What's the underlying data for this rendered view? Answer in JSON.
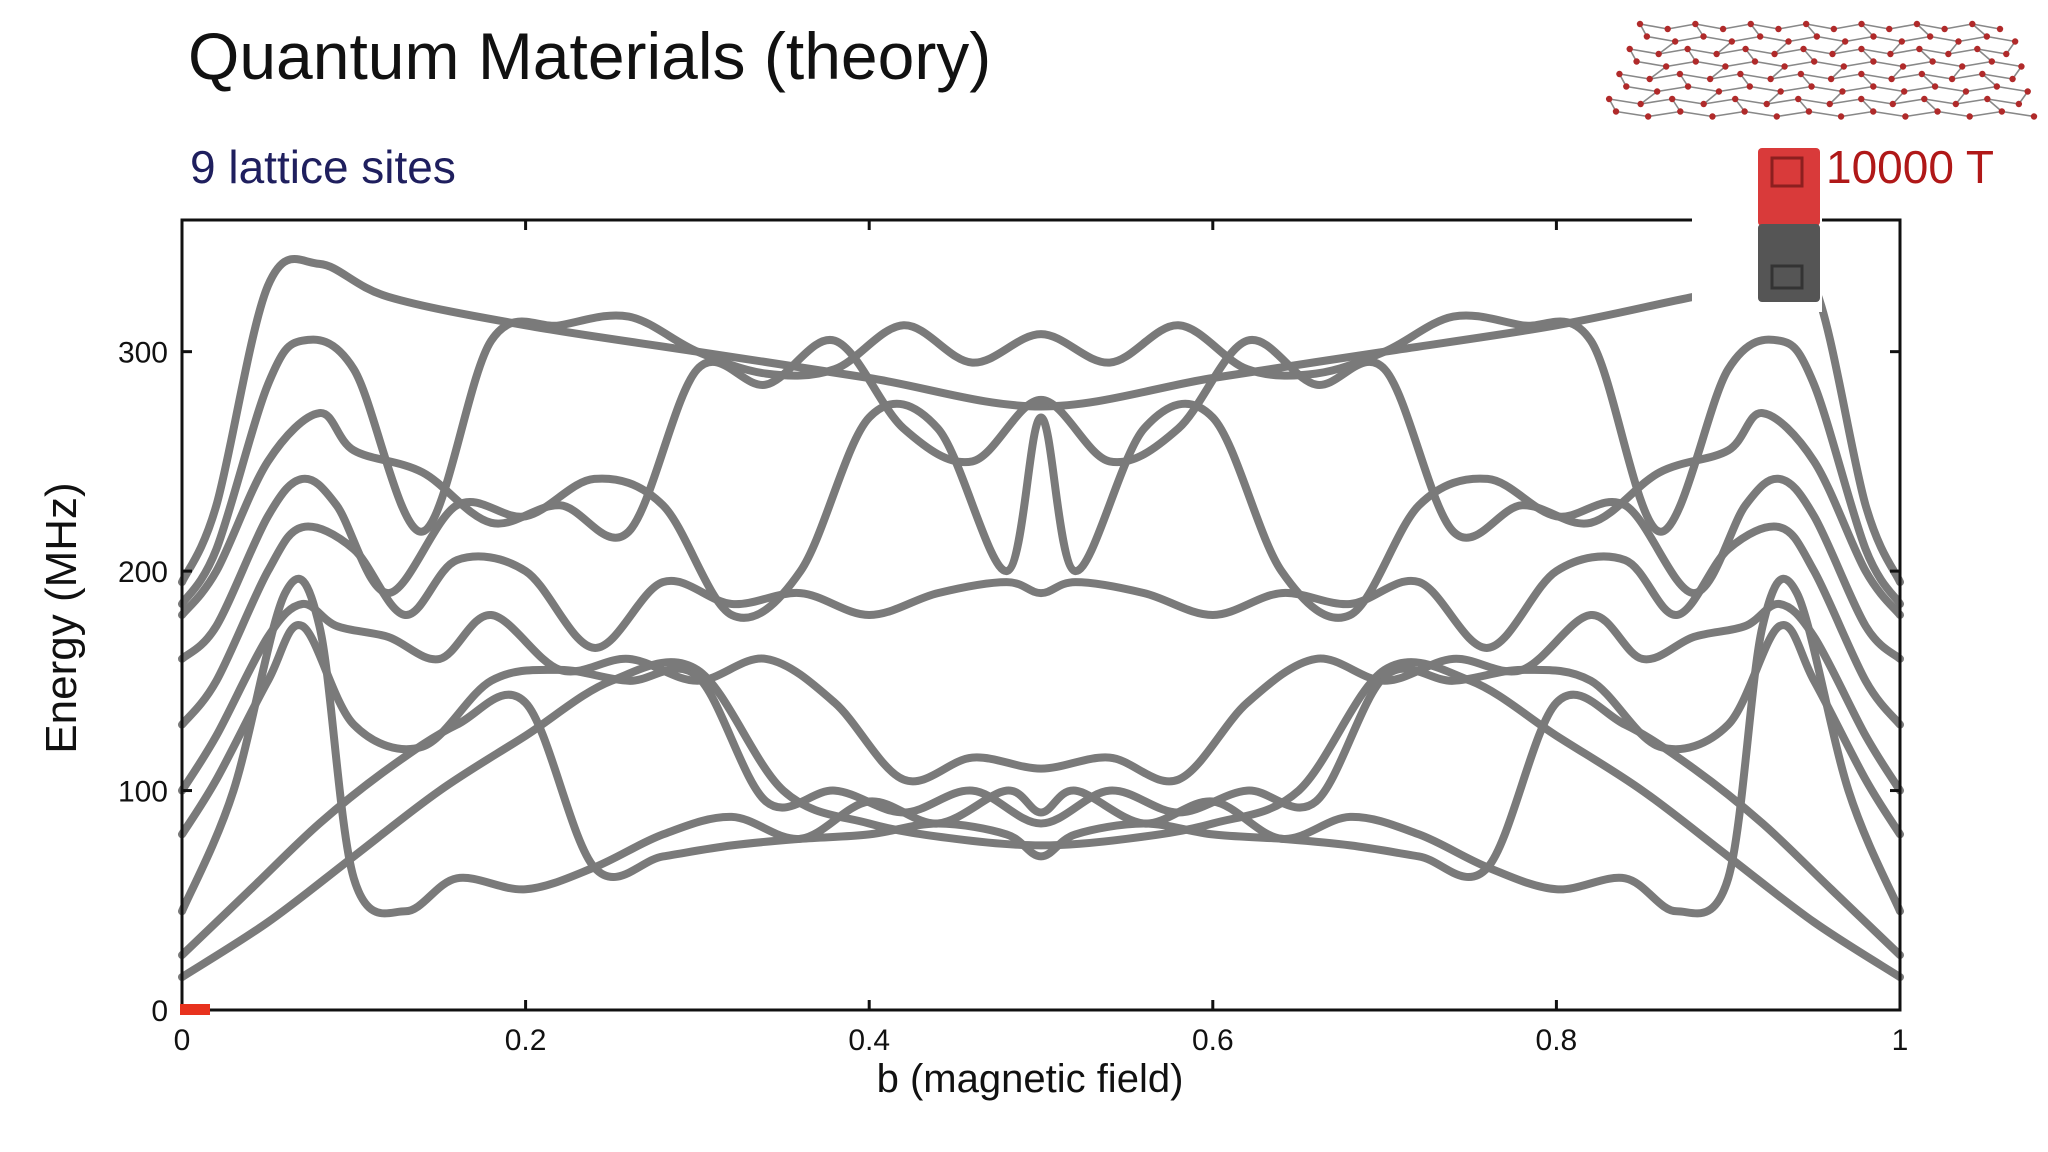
{
  "slide": {
    "title": "Quantum Materials (theory)",
    "subtitle": "9 lattice sites",
    "field_label": "10000 T"
  },
  "icons": {
    "lattice": "honeycomb-lattice-icon",
    "magnet": "bar-magnet-icon"
  },
  "colors": {
    "curve": "#7a7a7a",
    "marker": "#e8321e",
    "magnet_north": "#d93a3a",
    "magnet_south": "#555555",
    "lattice_dot": "#b02a2a",
    "field_text": "#b01818",
    "subtitle_text": "#1f1f5e"
  },
  "chart_data": {
    "type": "line",
    "title": "",
    "xlabel": "b (magnetic field)",
    "ylabel": "Energy (MHz)",
    "xlim": [
      0,
      1
    ],
    "ylim": [
      0,
      360
    ],
    "xticks": [
      0,
      0.2,
      0.4,
      0.6,
      0.8,
      1
    ],
    "xtick_labels": [
      "0",
      "0.2",
      "0.4",
      "0.6",
      "0.8",
      "1"
    ],
    "yticks": [
      0,
      100,
      200,
      300
    ],
    "ytick_labels": [
      "0",
      "100",
      "200",
      "300"
    ],
    "grid": false,
    "legend": "none",
    "current_b": 0,
    "series": [
      {
        "x": [
          0,
          0.02,
          0.05,
          0.08,
          0.12,
          0.2,
          0.3,
          0.4,
          0.5,
          0.6,
          0.7,
          0.8,
          0.88,
          0.92,
          0.95,
          0.98,
          1
        ],
        "y": [
          195,
          230,
          330,
          340,
          325,
          312,
          300,
          288,
          275,
          288,
          300,
          312,
          325,
          330,
          330,
          230,
          195
        ]
      },
      {
        "x": [
          0,
          0.02,
          0.05,
          0.07,
          0.1,
          0.14,
          0.18,
          0.22,
          0.26,
          0.3,
          0.34,
          0.38,
          0.42,
          0.46,
          0.5,
          0.54,
          0.58,
          0.62,
          0.66,
          0.7,
          0.74,
          0.78,
          0.82,
          0.86,
          0.9,
          0.93,
          0.95,
          0.98,
          1
        ],
        "y": [
          185,
          210,
          285,
          305,
          292,
          218,
          305,
          312,
          316,
          300,
          290,
          292,
          312,
          295,
          308,
          295,
          312,
          292,
          290,
          300,
          316,
          312,
          305,
          218,
          292,
          305,
          285,
          210,
          185
        ]
      },
      {
        "x": [
          0,
          0.02,
          0.05,
          0.08,
          0.1,
          0.14,
          0.18,
          0.22,
          0.26,
          0.3,
          0.34,
          0.38,
          0.42,
          0.46,
          0.5,
          0.54,
          0.58,
          0.62,
          0.66,
          0.7,
          0.74,
          0.78,
          0.82,
          0.86,
          0.9,
          0.92,
          0.95,
          0.98,
          1
        ],
        "y": [
          180,
          200,
          250,
          272,
          255,
          245,
          222,
          230,
          218,
          292,
          285,
          305,
          265,
          250,
          278,
          250,
          265,
          305,
          285,
          292,
          218,
          230,
          222,
          245,
          255,
          272,
          250,
          200,
          180
        ]
      },
      {
        "x": [
          0,
          0.02,
          0.05,
          0.07,
          0.09,
          0.12,
          0.16,
          0.2,
          0.24,
          0.28,
          0.32,
          0.36,
          0.4,
          0.44,
          0.48,
          0.5,
          0.52,
          0.56,
          0.6,
          0.64,
          0.68,
          0.72,
          0.76,
          0.8,
          0.84,
          0.88,
          0.91,
          0.93,
          0.95,
          0.98,
          1
        ],
        "y": [
          160,
          175,
          225,
          242,
          230,
          190,
          230,
          225,
          242,
          230,
          180,
          200,
          270,
          265,
          200,
          270,
          200,
          265,
          270,
          200,
          180,
          230,
          242,
          225,
          230,
          190,
          230,
          242,
          225,
          175,
          160
        ]
      },
      {
        "x": [
          0,
          0.02,
          0.05,
          0.07,
          0.1,
          0.13,
          0.16,
          0.2,
          0.24,
          0.28,
          0.32,
          0.36,
          0.4,
          0.44,
          0.48,
          0.5,
          0.52,
          0.56,
          0.6,
          0.64,
          0.68,
          0.72,
          0.76,
          0.8,
          0.84,
          0.87,
          0.9,
          0.93,
          0.95,
          0.98,
          1
        ],
        "y": [
          130,
          150,
          200,
          220,
          210,
          180,
          205,
          200,
          165,
          195,
          185,
          190,
          180,
          190,
          195,
          190,
          195,
          190,
          180,
          190,
          185,
          195,
          165,
          200,
          205,
          180,
          210,
          220,
          200,
          150,
          130
        ]
      },
      {
        "x": [
          0,
          0.02,
          0.05,
          0.07,
          0.09,
          0.12,
          0.15,
          0.18,
          0.22,
          0.26,
          0.3,
          0.34,
          0.38,
          0.42,
          0.46,
          0.5,
          0.54,
          0.58,
          0.62,
          0.66,
          0.7,
          0.74,
          0.78,
          0.82,
          0.85,
          0.88,
          0.91,
          0.93,
          0.95,
          0.98,
          1
        ],
        "y": [
          100,
          125,
          170,
          185,
          175,
          170,
          160,
          180,
          155,
          160,
          150,
          160,
          140,
          105,
          115,
          110,
          115,
          105,
          140,
          160,
          150,
          160,
          155,
          180,
          160,
          170,
          175,
          185,
          170,
          125,
          100
        ]
      },
      {
        "x": [
          0,
          0.02,
          0.05,
          0.07,
          0.1,
          0.14,
          0.18,
          0.22,
          0.26,
          0.3,
          0.34,
          0.38,
          0.42,
          0.46,
          0.5,
          0.54,
          0.58,
          0.62,
          0.66,
          0.7,
          0.74,
          0.78,
          0.82,
          0.86,
          0.9,
          0.93,
          0.95,
          0.98,
          1
        ],
        "y": [
          80,
          105,
          150,
          175,
          130,
          120,
          150,
          155,
          150,
          152,
          95,
          100,
          90,
          100,
          85,
          100,
          90,
          100,
          95,
          152,
          150,
          155,
          150,
          120,
          130,
          175,
          150,
          105,
          80
        ]
      },
      {
        "x": [
          0,
          0.03,
          0.06,
          0.08,
          0.1,
          0.13,
          0.16,
          0.2,
          0.24,
          0.28,
          0.32,
          0.36,
          0.4,
          0.44,
          0.48,
          0.5,
          0.52,
          0.56,
          0.6,
          0.64,
          0.68,
          0.72,
          0.76,
          0.8,
          0.84,
          0.87,
          0.9,
          0.92,
          0.94,
          0.97,
          1
        ],
        "y": [
          45,
          100,
          190,
          175,
          60,
          45,
          60,
          55,
          65,
          80,
          88,
          78,
          95,
          85,
          100,
          90,
          100,
          85,
          95,
          78,
          88,
          80,
          65,
          55,
          60,
          45,
          60,
          175,
          190,
          100,
          45
        ]
      },
      {
        "x": [
          0,
          0.04,
          0.08,
          0.12,
          0.16,
          0.2,
          0.24,
          0.28,
          0.32,
          0.36,
          0.4,
          0.44,
          0.48,
          0.5,
          0.52,
          0.56,
          0.6,
          0.64,
          0.68,
          0.72,
          0.76,
          0.8,
          0.84,
          0.88,
          0.92,
          0.96,
          1
        ],
        "y": [
          25,
          55,
          85,
          110,
          130,
          140,
          65,
          70,
          75,
          78,
          80,
          85,
          80,
          70,
          80,
          85,
          80,
          78,
          75,
          70,
          65,
          140,
          130,
          110,
          85,
          55,
          25
        ]
      },
      {
        "x": [
          0,
          0.05,
          0.1,
          0.15,
          0.2,
          0.25,
          0.3,
          0.35,
          0.4,
          0.45,
          0.5,
          0.55,
          0.6,
          0.65,
          0.7,
          0.75,
          0.8,
          0.85,
          0.9,
          0.95,
          1
        ],
        "y": [
          15,
          40,
          70,
          100,
          125,
          150,
          155,
          100,
          85,
          78,
          75,
          78,
          85,
          100,
          155,
          150,
          125,
          100,
          70,
          40,
          15
        ]
      }
    ]
  }
}
